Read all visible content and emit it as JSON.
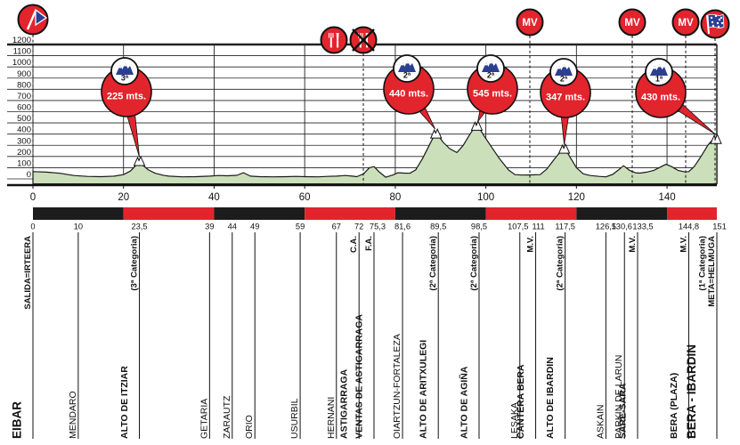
{
  "colors": {
    "red": "#e2242d",
    "black": "#1c1c1c",
    "blue": "#2b3f92",
    "green": "#cbe0ba",
    "line": "#1a1a1a",
    "white": "#ffffff"
  },
  "y_axis": {
    "labels": [
      "1200",
      "1100",
      "1000",
      "900",
      "800",
      "700",
      "600",
      "500",
      "400",
      "300",
      "200",
      "100",
      "0"
    ]
  },
  "x_axis": {
    "tick_labels": [
      "0",
      "20",
      "40",
      "60",
      "80",
      "100",
      "120",
      "140"
    ],
    "tick_values": [
      0,
      20,
      40,
      60,
      80,
      100,
      120,
      140
    ]
  },
  "distance_bar": {
    "segments": [
      {
        "from": 0,
        "to": 20,
        "color": "black"
      },
      {
        "from": 20,
        "to": 40,
        "color": "red"
      },
      {
        "from": 40,
        "to": 60,
        "color": "black"
      },
      {
        "from": 60,
        "to": 80,
        "color": "red"
      },
      {
        "from": 80,
        "to": 100,
        "color": "black"
      },
      {
        "from": 100,
        "to": 120,
        "color": "red"
      },
      {
        "from": 120,
        "to": 140,
        "color": "black"
      },
      {
        "from": 140,
        "to": 151,
        "color": "red"
      }
    ]
  },
  "top_icons": {
    "start": "start-flag-icon",
    "feed_zone": "feed-zone-icon",
    "feed_zone_end": "feed-zone-end-icon",
    "mv_label": "MV",
    "mv_count": 3,
    "finish": "finish-flag-icon"
  },
  "climbs": [
    {
      "label": "225 mts.",
      "category": "3ª",
      "tip_km": 23.5,
      "tip_elev": 195
    },
    {
      "label": "440 mts.",
      "category": "2ª",
      "tip_km": 88.8,
      "tip_elev": 445
    },
    {
      "label": "545 mts.",
      "category": "2ª",
      "tip_km": 98.2,
      "tip_elev": 510
    },
    {
      "label": "347 mts.",
      "category": "2ª",
      "tip_km": 117.3,
      "tip_elev": 305
    },
    {
      "label": "430 mts.",
      "category": "1ª",
      "tip_km": 150.6,
      "tip_elev": 400
    }
  ],
  "chart_data": {
    "type": "area",
    "xlabel": "km",
    "ylabel": "m",
    "x_range": [
      0,
      151
    ],
    "y_range": [
      0,
      1200
    ],
    "y_step": 100,
    "x_tick_step": 20,
    "profile": [
      [
        0,
        65
      ],
      [
        3,
        60
      ],
      [
        6,
        50
      ],
      [
        9,
        30
      ],
      [
        12,
        22
      ],
      [
        15,
        20
      ],
      [
        18,
        25
      ],
      [
        20,
        38
      ],
      [
        21.5,
        70
      ],
      [
        22.7,
        120
      ],
      [
        23.5,
        175
      ],
      [
        24.3,
        120
      ],
      [
        25.5,
        80
      ],
      [
        27,
        50
      ],
      [
        29,
        30
      ],
      [
        30,
        25
      ],
      [
        33,
        18
      ],
      [
        36,
        20
      ],
      [
        39,
        25
      ],
      [
        41,
        30
      ],
      [
        43,
        28
      ],
      [
        45,
        32
      ],
      [
        46.5,
        55
      ],
      [
        48,
        25
      ],
      [
        50,
        20
      ],
      [
        53,
        18
      ],
      [
        56,
        20
      ],
      [
        58,
        22
      ],
      [
        60,
        20
      ],
      [
        63,
        18
      ],
      [
        65,
        22
      ],
      [
        67,
        25
      ],
      [
        69,
        30
      ],
      [
        70.5,
        25
      ],
      [
        71.5,
        20
      ],
      [
        73,
        45
      ],
      [
        74.3,
        100
      ],
      [
        75.3,
        110
      ],
      [
        76.5,
        60
      ],
      [
        77.9,
        15
      ],
      [
        79.5,
        35
      ],
      [
        80.6,
        55
      ],
      [
        82,
        52
      ],
      [
        83.2,
        50
      ],
      [
        84.5,
        80
      ],
      [
        86,
        180
      ],
      [
        87.5,
        300
      ],
      [
        89,
        420
      ],
      [
        90.5,
        330
      ],
      [
        92,
        270
      ],
      [
        93.6,
        235
      ],
      [
        95,
        300
      ],
      [
        96.5,
        400
      ],
      [
        98,
        490
      ],
      [
        99.5,
        390
      ],
      [
        101,
        300
      ],
      [
        103,
        180
      ],
      [
        105,
        80
      ],
      [
        106.4,
        38
      ],
      [
        108,
        34
      ],
      [
        110,
        36
      ],
      [
        112,
        38
      ],
      [
        113.5,
        90
      ],
      [
        115,
        170
      ],
      [
        117.3,
        285
      ],
      [
        118.5,
        200
      ],
      [
        120,
        100
      ],
      [
        121.5,
        45
      ],
      [
        123,
        30
      ],
      [
        125,
        22
      ],
      [
        126.5,
        18
      ],
      [
        128,
        40
      ],
      [
        129.3,
        80
      ],
      [
        130.4,
        118
      ],
      [
        131.8,
        75
      ],
      [
        133,
        55
      ],
      [
        134,
        52
      ],
      [
        135.5,
        60
      ],
      [
        137,
        75
      ],
      [
        138.5,
        105
      ],
      [
        139.8,
        130
      ],
      [
        141,
        110
      ],
      [
        142.5,
        75
      ],
      [
        144,
        62
      ],
      [
        144.8,
        65
      ],
      [
        146,
        110
      ],
      [
        147.5,
        200
      ],
      [
        149,
        300
      ],
      [
        150.2,
        355
      ],
      [
        151,
        380
      ]
    ],
    "summits": [
      {
        "km": 23.5,
        "profile_elev": 175,
        "elev_label": "225 mts.",
        "category": "3ª"
      },
      {
        "km": 89,
        "profile_elev": 420,
        "elev_label": "440 mts.",
        "category": "2ª"
      },
      {
        "km": 98,
        "profile_elev": 490,
        "elev_label": "545 mts.",
        "category": "2ª"
      },
      {
        "km": 117.3,
        "profile_elev": 285,
        "elev_label": "347 mts.",
        "category": "2ª"
      },
      {
        "km": 150.8,
        "profile_elev": 372,
        "elev_label": "430 mts.",
        "category": "1ª"
      }
    ]
  },
  "locations": [
    {
      "km": 0,
      "km_label": "0",
      "name": "EIBAR",
      "subs": [
        "SALIDA=IRTEERA"
      ],
      "style": "start"
    },
    {
      "km": 10,
      "km_label": "10",
      "name": "MENDARO",
      "subs": [],
      "style": "town"
    },
    {
      "km": 23.5,
      "km_label": "23,5",
      "name": "ALTO DE ITZIAR",
      "subs": [
        "(3ª Categoria)"
      ],
      "style": "climb"
    },
    {
      "km": 39,
      "km_label": "39",
      "name": "GETARIA",
      "subs": [],
      "style": "town"
    },
    {
      "km": 44,
      "km_label": "44",
      "name": "ZARAUTZ",
      "subs": [],
      "style": "town"
    },
    {
      "km": 49,
      "km_label": "49",
      "name": "ORIO",
      "subs": [],
      "style": "town"
    },
    {
      "km": 59,
      "km_label": "59",
      "name": "USURBIL",
      "subs": [],
      "style": "town"
    },
    {
      "km": 67,
      "km_label": "67",
      "name": "HERNANI",
      "subs": [],
      "style": "town"
    },
    {
      "km": 72,
      "km_label": "72",
      "name": "ASTIGARRAGA",
      "subs": [
        "C.A."
      ],
      "style": "bold"
    },
    {
      "km": 75.3,
      "km_label": "75,3",
      "name": "VENTAS DE ASTIGARRAGA",
      "subs": [
        "F.A."
      ],
      "style": "bold",
      "dx": 4
    },
    {
      "km": 81.6,
      "km_label": "81,6",
      "name": "OIARTZUN-FORTALEZA",
      "subs": [],
      "style": "town"
    },
    {
      "km": 89.5,
      "km_label": "89,5",
      "name": "ALTO DE ARITXULEGI",
      "subs": [
        "(2ª Categoria)"
      ],
      "style": "climb"
    },
    {
      "km": 98.5,
      "km_label": "98,5",
      "name": "ALTO DE AGIÑA",
      "subs": [
        "(2ª Categoria)"
      ],
      "style": "climb"
    },
    {
      "km": 107.5,
      "km_label": "107,5",
      "name": "LESAKA",
      "subs": [],
      "style": "town",
      "dx": -2
    },
    {
      "km": 111,
      "km_label": "111",
      "name": "CANTERA BERA",
      "subs": [
        "M.V."
      ],
      "style": "bold",
      "dx": 3
    },
    {
      "km": 117.5,
      "km_label": "117,5",
      "name": "ALTO DE IBARDIN",
      "subs": [
        "(2ª Categoria)"
      ],
      "style": "climb"
    },
    {
      "km": 126.5,
      "km_label": "126,5",
      "name": "ASKAIN",
      "subs": [],
      "style": "town"
    },
    {
      "km": 130.6,
      "km_label": "130,6",
      "name": "PARKIN DE LARUN",
      "subs": [],
      "style": "town",
      "dx": -3
    },
    {
      "km": 133.5,
      "km_label": "133,5",
      "name": "SARE-SARA",
      "subs": [
        "M.V."
      ],
      "style": "bold",
      "dx": 6
    },
    {
      "km": 144.8,
      "km_label": "144,8",
      "name": "BERA (PLAZA)",
      "subs": [
        "M.V."
      ],
      "style": "bold"
    },
    {
      "km": 151,
      "km_label": "151",
      "name": "BERA - IBARDIN",
      "subs": [
        "(1ª Categoria)",
        "META=HELMUGA"
      ],
      "style": "finish",
      "dx": 3
    }
  ]
}
